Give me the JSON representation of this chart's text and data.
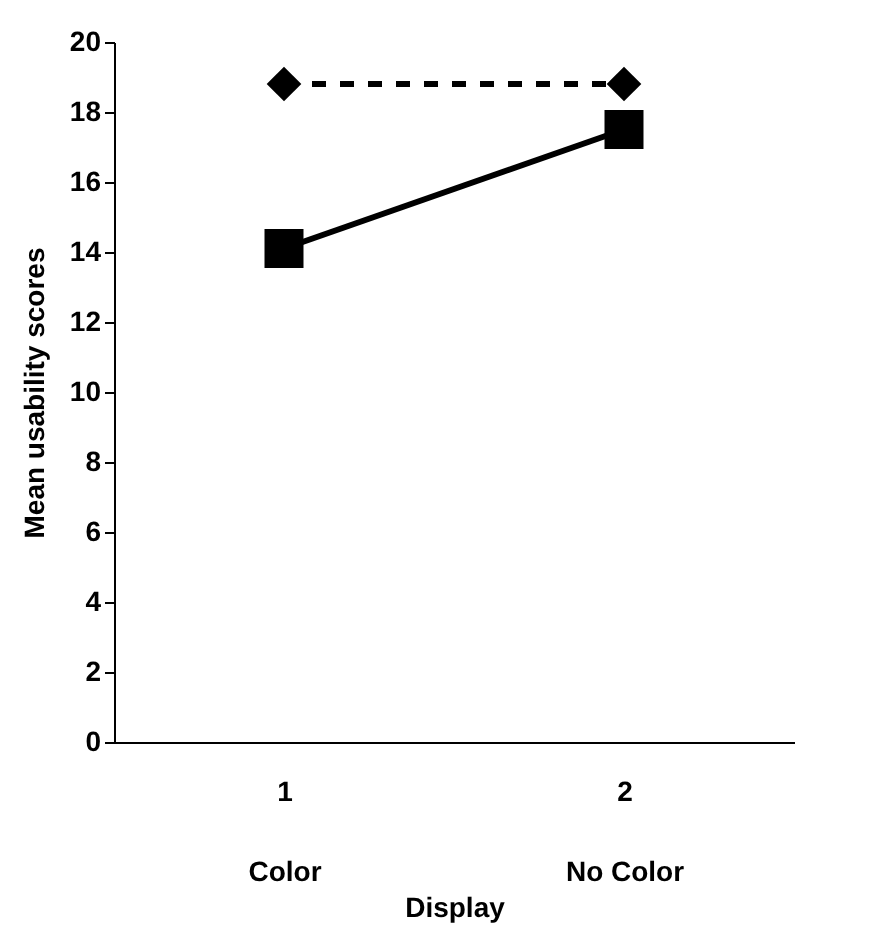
{
  "chart_data": {
    "type": "line",
    "xlabel": "Display",
    "ylabel": "Mean usability scores",
    "categories": [
      "1\nColor",
      "2\nNo Color"
    ],
    "series": [
      {
        "color": "#000000",
        "marker": "diamond",
        "line_style": "dashed",
        "values": [
          18.8,
          18.8
        ]
      },
      {
        "color": "#000000",
        "marker": "square",
        "line_style": "solid",
        "values": [
          14.1,
          17.5
        ]
      }
    ],
    "ylim": [
      0,
      20
    ],
    "yticks": [
      0,
      2,
      4,
      6,
      8,
      10,
      12,
      14,
      16,
      18,
      20
    ],
    "grid": false
  }
}
